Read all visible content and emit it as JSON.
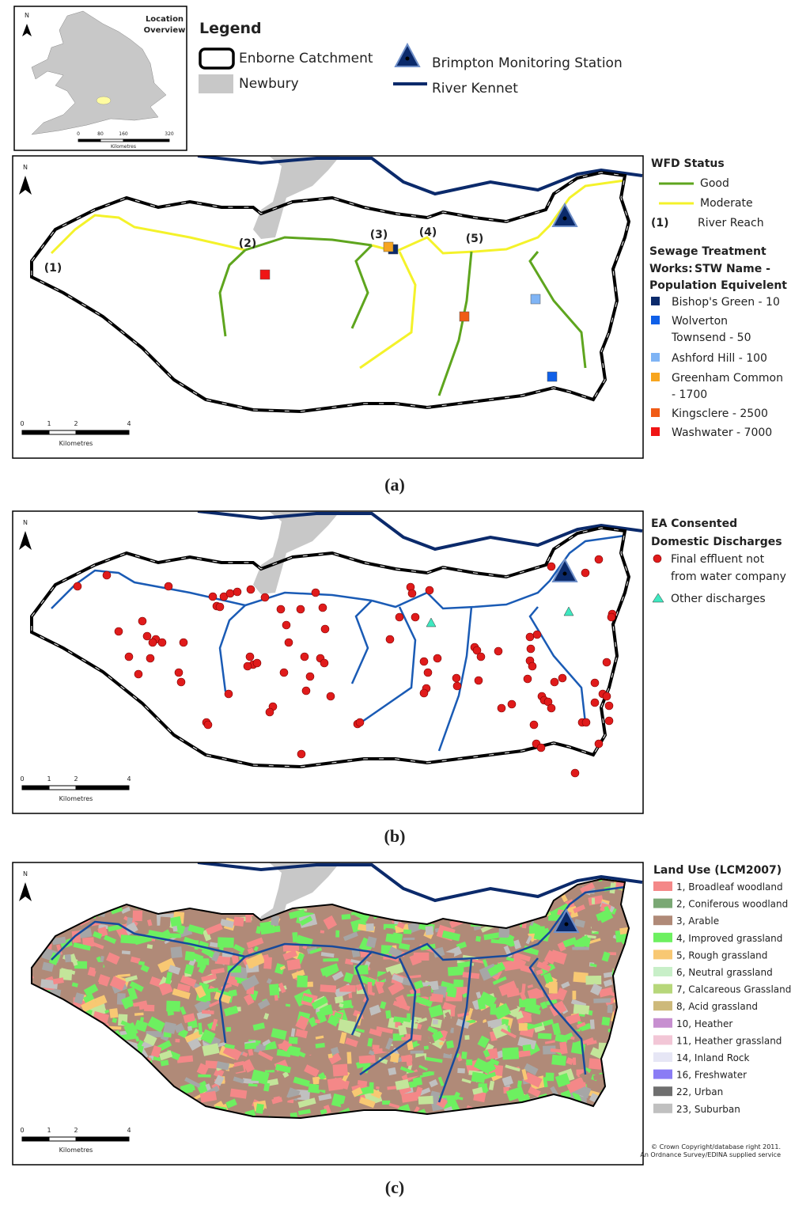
{
  "overview": {
    "north": "N",
    "title_line1": "Location",
    "title_line2": "Overview",
    "scale_labels": [
      "0",
      "80",
      "160",
      "320"
    ],
    "scale_unit": "Kilometres"
  },
  "legend": {
    "title": "Legend",
    "items": [
      "Enborne Catchment",
      "Newbury",
      "Brimpton Monitoring Station",
      "River Kennet"
    ]
  },
  "panel_a": {
    "north": "N",
    "reach_labels": [
      "(1)",
      "(2)",
      "(3)",
      "(4)",
      "(5)"
    ],
    "scale_labels": [
      "0",
      "1",
      "2",
      "4"
    ],
    "scale_unit": "Kilometres",
    "wfd_title": "WFD Status",
    "wfd_items": [
      "Good",
      "Moderate"
    ],
    "reach_key": "(1)",
    "reach_key_label": "River Reach",
    "stw_title_lines": [
      "Sewage Treatment",
      "Works:"
    ],
    "stw_subtitle_lines": [
      "STW Name -",
      "Population Equivelent"
    ],
    "stw_items": [
      [
        "Bishop's Green - 10"
      ],
      [
        "Wolverton",
        "Townsend - 50"
      ],
      [
        "Ashford Hill - 100"
      ],
      [
        "Greenham Common",
        "- 1700"
      ],
      [
        "Kingsclere - 2500"
      ],
      [
        "Washwater - 7000"
      ]
    ],
    "caption": "(a)"
  },
  "panel_b": {
    "north": "N",
    "scale_labels": [
      "0",
      "1",
      "2",
      "4"
    ],
    "scale_unit": "Kilometres",
    "title_lines": [
      "EA Consented",
      "Domestic Discharges"
    ],
    "items": [
      [
        "Final effluent not",
        "from water company"
      ],
      [
        "Other discharges"
      ]
    ],
    "caption": "(b)"
  },
  "panel_c": {
    "north": "N",
    "scale_labels": [
      "0",
      "1",
      "2",
      "4"
    ],
    "scale_unit": "Kilometres",
    "title": "Land Use (LCM2007)",
    "items": [
      "1, Broadleaf woodland",
      "2, Coniferous woodland",
      "3, Arable",
      "4, Improved grassland",
      "5, Rough grassland",
      "6, Neutral grassland",
      "7, Calcareous Grassland",
      "8, Acid grassland",
      "10, Heather",
      "11, Heather grassland",
      "14, Inland Rock",
      "16, Freshwater",
      "22, Urban",
      "23, Suburban"
    ],
    "copyright_lines": [
      "© Crown Copyright/database right 2011.",
      "An Ordnance Survey/EDINA supplied service"
    ],
    "caption": "(c)"
  }
}
